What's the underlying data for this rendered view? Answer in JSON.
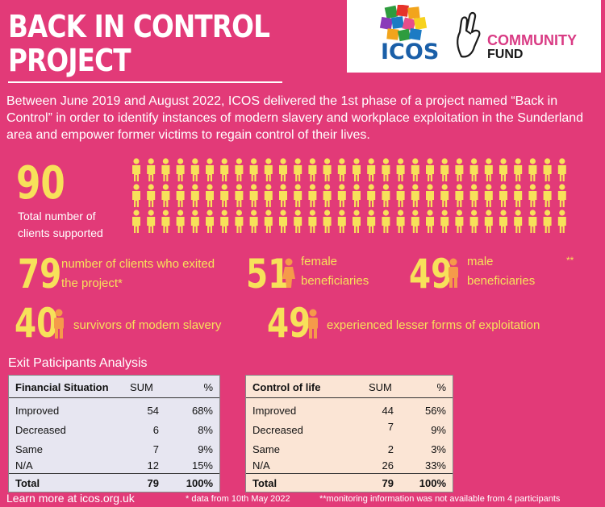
{
  "header": {
    "title_line1": "BACK IN CONTROL",
    "title_line2": "PROJECT",
    "logos": {
      "icos": "ICOS",
      "community": "COMMUNITY",
      "fund": "FUND"
    }
  },
  "intro": "Between June 2019 and August 2022, ICOS delivered the 1st phase of a project named “Back in Control” in order to identify instances of modern slavery and workplace exploitation in the Sunderland area and empower former victims to regain control of their lives.",
  "total": {
    "value": "90",
    "label": "Total number of clients supported",
    "people_count": 90,
    "person_color": "#f7e15a"
  },
  "stats": {
    "exited": {
      "value": "79",
      "label": "number of clients who exited the project*"
    },
    "female": {
      "value": "51",
      "label": "female beneficiaries"
    },
    "male": {
      "value": "49",
      "label": "male beneficiaries",
      "marker": "**"
    },
    "survivors": {
      "value": "40",
      "label": "survivors of modern slavery"
    },
    "lesser": {
      "value": "49",
      "label": "experienced lesser forms of exploitation"
    }
  },
  "analysis": {
    "title": "Exit Paticipants Analysis",
    "financial": {
      "headers": [
        "Financial Situation",
        "SUM",
        "%"
      ],
      "rows": [
        [
          "Improved",
          "54",
          "68%"
        ],
        [
          "Decreased",
          "6",
          "8%"
        ],
        [
          "Same",
          "7",
          "9%"
        ],
        [
          "N/A",
          "12",
          "15%"
        ]
      ],
      "total": [
        "Total",
        "79",
        "100%"
      ]
    },
    "control": {
      "headers": [
        "Control of life",
        "SUM",
        "%"
      ],
      "rows": [
        [
          "Improved",
          "44",
          "56%"
        ],
        [
          "Decreased",
          "7",
          "9%"
        ],
        [
          "Same",
          "2",
          "3%"
        ],
        [
          "N/A",
          "26",
          "33%"
        ]
      ],
      "total": [
        "Total",
        "79",
        "100%"
      ]
    }
  },
  "footer": {
    "learn": "Learn more at icos.org.uk",
    "note1": "* data from 10th May 2022",
    "note2": "**monitoring information was not available from 4 participants"
  },
  "colors": {
    "background": "#e23a78",
    "accent_yellow": "#f7e15a",
    "person_orange": "#f59a4a"
  }
}
